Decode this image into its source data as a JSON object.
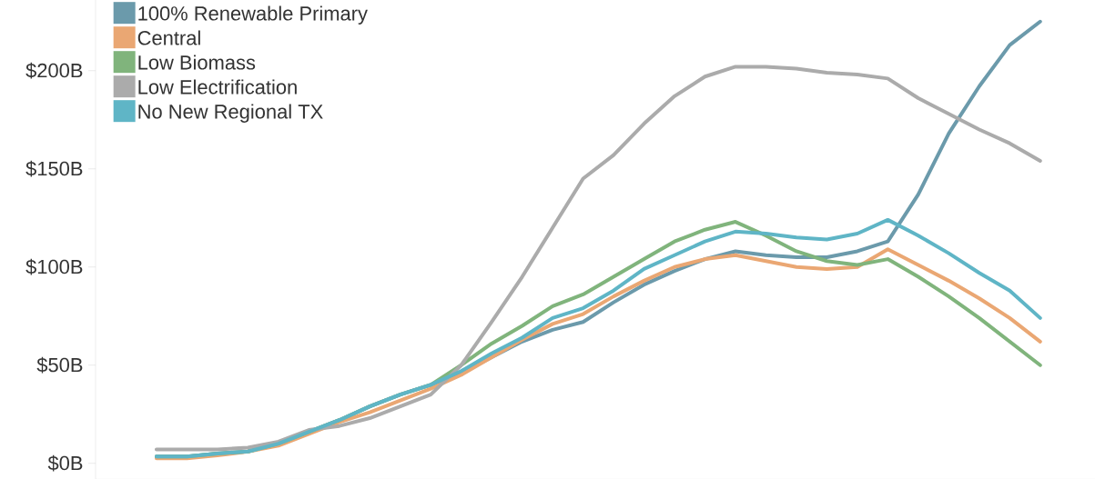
{
  "chart_data": {
    "type": "line",
    "categories": [
      null,
      null,
      null,
      null,
      null,
      null,
      null,
      null,
      null,
      null,
      null,
      null,
      null,
      null,
      null,
      null,
      null,
      null,
      null,
      null,
      null,
      null,
      null,
      null,
      null,
      null,
      null,
      null,
      null,
      null
    ],
    "ylim": [
      -8,
      236
    ],
    "yticks": [
      {
        "value": 0,
        "label": "$0B"
      },
      {
        "value": 50,
        "label": "$50B"
      },
      {
        "value": 100,
        "label": "$100B"
      },
      {
        "value": 150,
        "label": "$150B"
      },
      {
        "value": 200,
        "label": "$200B"
      }
    ],
    "tick_labels": "y",
    "legend": "top left",
    "line_style": "solid",
    "series": [
      {
        "name": "100% Renewable Primary",
        "color": "#6b9aab",
        "values": [
          3.5,
          3.5,
          5,
          6,
          10,
          16,
          22,
          29,
          35,
          40,
          46,
          54,
          62,
          68,
          72,
          82,
          91,
          98,
          104,
          108,
          106,
          105,
          105,
          108,
          113,
          137,
          168,
          192,
          213,
          225
        ]
      },
      {
        "name": "Central",
        "color": "#eaa773",
        "values": [
          2.5,
          2.5,
          4,
          6,
          9,
          15,
          21,
          26,
          32,
          38,
          45,
          54,
          63,
          71,
          76,
          85,
          93,
          100,
          104,
          106,
          103,
          100,
          99,
          100,
          109,
          101,
          93,
          84,
          74,
          62
        ]
      },
      {
        "name": "Low Biomass",
        "color": "#80b47c",
        "values": [
          3.5,
          3.5,
          5,
          6,
          10,
          16,
          22,
          29,
          35,
          40,
          50,
          61,
          70,
          80,
          86,
          95,
          104,
          113,
          119,
          123,
          116,
          108,
          103,
          101,
          104,
          95,
          85,
          74,
          62,
          50
        ]
      },
      {
        "name": "Low Electrification",
        "color": "#ababab",
        "values": [
          7,
          7,
          7,
          8,
          11,
          17,
          19,
          23,
          29,
          35,
          50,
          72,
          95,
          120,
          145,
          157,
          173,
          187,
          197,
          202,
          202,
          201,
          199,
          198,
          196,
          186,
          178,
          170,
          163,
          154
        ]
      },
      {
        "name": "No New Regional TX",
        "color": "#5fb5c6",
        "values": [
          3.5,
          3.5,
          5,
          6,
          10,
          16,
          22,
          29,
          35,
          40,
          47,
          56,
          64,
          74,
          79,
          88,
          99,
          106,
          113,
          118,
          117,
          115,
          114,
          117,
          124,
          116,
          107,
          97,
          88,
          74
        ]
      }
    ]
  }
}
